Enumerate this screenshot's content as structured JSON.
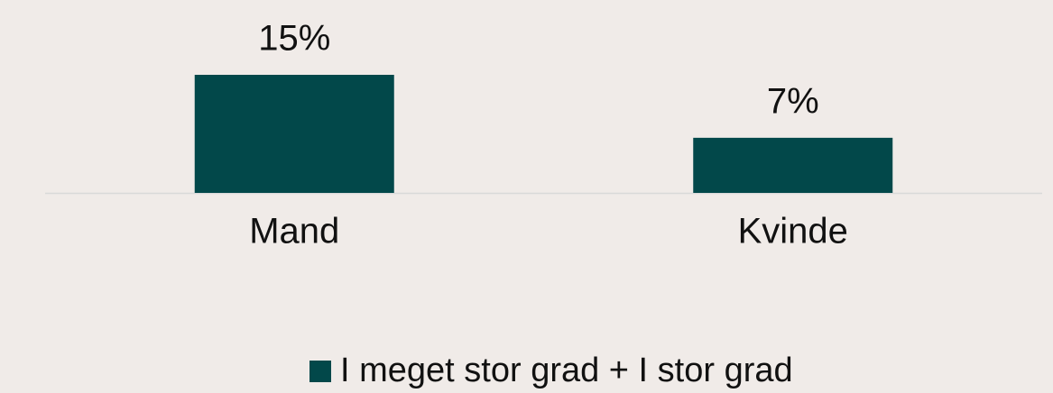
{
  "chart_data": {
    "type": "bar",
    "categories": [
      "Mand",
      "Kvinde"
    ],
    "series": [
      {
        "name": "I meget stor grad + I stor grad",
        "color": "#02484a",
        "values": [
          15,
          7
        ],
        "value_labels": [
          "15%",
          "7%"
        ]
      }
    ],
    "legend": "bottom"
  }
}
